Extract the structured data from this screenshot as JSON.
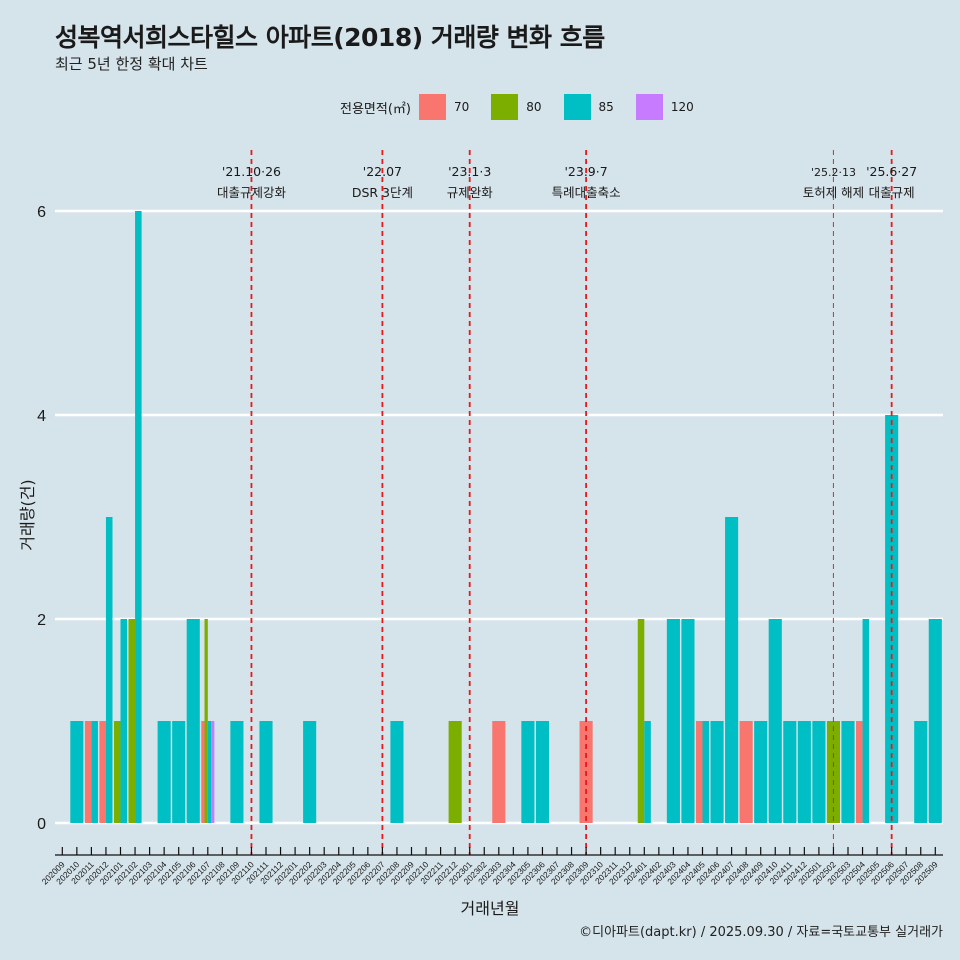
{
  "header": {
    "title": "성복역서희스타힐스 아파트(2018) 거래량 변화 흐름",
    "subtitle": "최근 5년 한정 확대 차트"
  },
  "legend": {
    "title": "전용면적(㎡)",
    "items": [
      {
        "label": "70",
        "color": "#F8766D"
      },
      {
        "label": "80",
        "color": "#7CAE00"
      },
      {
        "label": "85",
        "color": "#00BFC4"
      },
      {
        "label": "120",
        "color": "#C77CFF"
      }
    ]
  },
  "caption": "©디아파트(dapt.kr) / 2025.09.30 / 자료=국토교통부 실거래가",
  "chart_data": {
    "type": "bar",
    "title": "성복역서희스타힐스 아파트(2018) 거래량 변화 흐름",
    "subtitle": "최근 5년 한정 확대 차트",
    "xlabel": "거래년월",
    "ylabel": "거래량(건)",
    "ylim": [
      0,
      6
    ],
    "yticks": [
      0,
      2,
      4,
      6
    ],
    "grid": true,
    "legend_position": "top",
    "bar_position": "dodge",
    "categories": [
      "202009",
      "202010",
      "202011",
      "202012",
      "202101",
      "202102",
      "202103",
      "202104",
      "202105",
      "202106",
      "202107",
      "202108",
      "202109",
      "202110",
      "202111",
      "202112",
      "202201",
      "202202",
      "202203",
      "202204",
      "202205",
      "202206",
      "202207",
      "202208",
      "202209",
      "202210",
      "202211",
      "202212",
      "202301",
      "202302",
      "202303",
      "202304",
      "202305",
      "202306",
      "202307",
      "202308",
      "202309",
      "202310",
      "202311",
      "202312",
      "202401",
      "202402",
      "202403",
      "202404",
      "202405",
      "202406",
      "202407",
      "202408",
      "202409",
      "202410",
      "202411",
      "202412",
      "202501",
      "202502",
      "202503",
      "202504",
      "202505",
      "202506",
      "202507",
      "202508",
      "202509"
    ],
    "series": [
      {
        "name": "70",
        "color": "#F8766D",
        "values": [
          0,
          0,
          1,
          1,
          0,
          0,
          0,
          0,
          0,
          0,
          1,
          0,
          0,
          0,
          0,
          0,
          0,
          0,
          0,
          0,
          0,
          0,
          0,
          0,
          0,
          0,
          0,
          0,
          0,
          0,
          1,
          0,
          0,
          0,
          0,
          0,
          1,
          0,
          0,
          0,
          0,
          0,
          0,
          0,
          1,
          0,
          0,
          1,
          0,
          0,
          0,
          0,
          0,
          0,
          0,
          1,
          0,
          0,
          0,
          0,
          0
        ]
      },
      {
        "name": "80",
        "color": "#7CAE00",
        "values": [
          0,
          0,
          0,
          0,
          1,
          2,
          0,
          0,
          0,
          0,
          2,
          0,
          0,
          0,
          0,
          0,
          0,
          0,
          0,
          0,
          0,
          0,
          0,
          0,
          0,
          0,
          0,
          1,
          0,
          0,
          0,
          0,
          0,
          0,
          0,
          0,
          0,
          0,
          0,
          0,
          2,
          0,
          0,
          0,
          0,
          0,
          0,
          0,
          0,
          0,
          0,
          0,
          0,
          1,
          0,
          0,
          0,
          0,
          0,
          0,
          0
        ]
      },
      {
        "name": "85",
        "color": "#00BFC4",
        "values": [
          0,
          1,
          1,
          3,
          2,
          6,
          0,
          1,
          1,
          2,
          1,
          0,
          1,
          0,
          1,
          0,
          0,
          1,
          0,
          0,
          0,
          0,
          0,
          1,
          0,
          0,
          0,
          0,
          0,
          0,
          0,
          0,
          1,
          1,
          0,
          0,
          0,
          0,
          0,
          0,
          1,
          0,
          2,
          2,
          1,
          1,
          3,
          0,
          1,
          2,
          1,
          1,
          1,
          0,
          1,
          2,
          0,
          4,
          0,
          1,
          2
        ]
      },
      {
        "name": "120",
        "color": "#C77CFF",
        "values": [
          0,
          0,
          0,
          0,
          0,
          0,
          0,
          0,
          0,
          0,
          1,
          0,
          0,
          0,
          0,
          0,
          0,
          0,
          0,
          0,
          0,
          0,
          0,
          0,
          0,
          0,
          0,
          0,
          0,
          0,
          0,
          0,
          0,
          0,
          0,
          0,
          0,
          0,
          0,
          0,
          0,
          0,
          0,
          0,
          0,
          0,
          0,
          0,
          0,
          0,
          0,
          0,
          0,
          0,
          0,
          0,
          0,
          0,
          0,
          0,
          0
        ]
      }
    ],
    "events": [
      {
        "month": "202110",
        "date_label": "'21.10·26",
        "desc": "대출규제강화",
        "style": "bold"
      },
      {
        "month": "202207",
        "date_label": "'22.07",
        "desc": "DSR 3단계",
        "style": "bold"
      },
      {
        "month": "202301",
        "date_label": "'23.1·3",
        "desc": "규제완화",
        "style": "bold"
      },
      {
        "month": "202309",
        "date_label": "'23.9·7",
        "desc": "특례대출축소",
        "style": "bold"
      },
      {
        "month": "202502",
        "date_label": "'25.2·13",
        "desc": "토허제 해제",
        "style": "light"
      },
      {
        "month": "202506",
        "date_label": "'25.6·27",
        "desc": "대출규제",
        "style": "bold"
      }
    ],
    "event_line_color": "#E41A1C"
  }
}
